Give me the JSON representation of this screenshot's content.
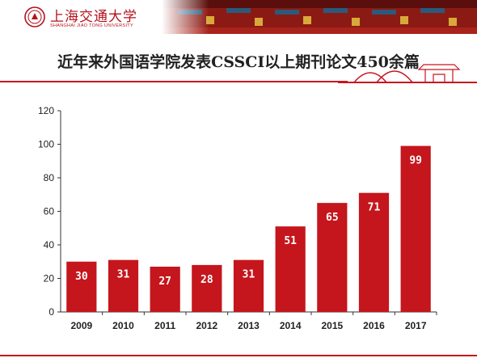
{
  "header": {
    "university_name_cn": "上海交通大学",
    "university_name_en": "SHANGHAI JIAO TONG UNIVERSITY"
  },
  "slide": {
    "title": "近年来外国语学院发表CSSCI以上期刊论文450余篇"
  },
  "colors": {
    "accent": "#c8161d",
    "bar": "#c4161c"
  },
  "chart_data": {
    "type": "bar",
    "title": "",
    "xlabel": "",
    "ylabel": "",
    "categories": [
      "2009",
      "2010",
      "2011",
      "2012",
      "2013",
      "2014",
      "2015",
      "2016",
      "2017"
    ],
    "values": [
      30,
      31,
      27,
      28,
      31,
      51,
      65,
      71,
      99
    ],
    "ylim": [
      0,
      120
    ],
    "yticks": [
      0,
      20,
      40,
      60,
      80,
      100,
      120
    ],
    "grid": false,
    "legend": "none",
    "data_labels": true
  }
}
